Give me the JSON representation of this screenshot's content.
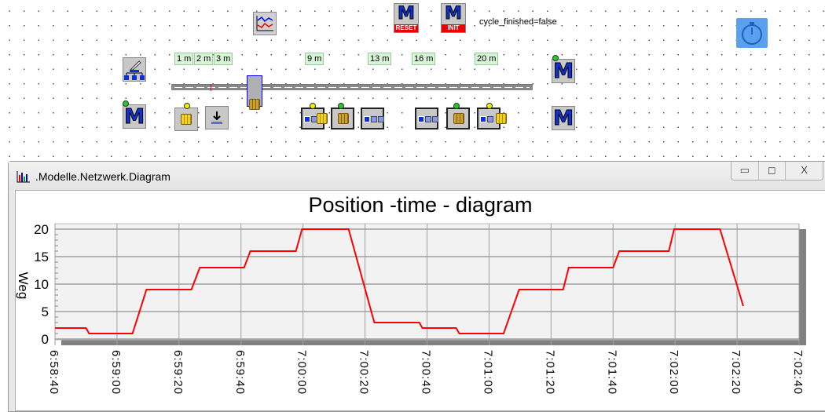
{
  "network": {
    "status_text": "cycle_finished=false",
    "reset_label": "RESET",
    "init_label": "INIT",
    "position_tags": [
      "1 m",
      "2 m",
      "3 m",
      "9 m",
      "13 m",
      "16 m",
      "20 m"
    ],
    "method_letter": "M"
  },
  "window": {
    "title": ".Modelle.Netzwerk.Diagram",
    "minimize": "▭",
    "maximize": "◻",
    "close": "X"
  },
  "chart_data": {
    "type": "line",
    "title": "Position -time - diagram",
    "xlabel": "",
    "ylabel": "Weg",
    "x_unit": "seconds since 6:58:40",
    "xlim": [
      0,
      240
    ],
    "ylim": [
      0,
      20
    ],
    "yticks": [
      0,
      5,
      10,
      15,
      20
    ],
    "xticks": [
      0,
      20,
      40,
      60,
      80,
      100,
      120,
      140,
      160,
      180,
      200,
      220,
      240
    ],
    "xtick_labels": [
      "6:58:40",
      "6:59:00",
      "6:59:20",
      "6:59:40",
      "7:00:00",
      "7:00:20",
      "7:00:40",
      "7:01:00",
      "7:01:20",
      "7:01:40",
      "7:02:00",
      "7:02:20",
      "7:02:40"
    ],
    "grid": true,
    "series": [
      {
        "name": "Weg",
        "color": "#ff0000",
        "x": [
          0,
          10,
          11,
          25,
          29.5,
          44,
          46.7,
          61,
          63,
          77.7,
          79.7,
          94.7,
          103,
          117.5,
          118.5,
          129.4,
          130.4,
          144.7,
          149.7,
          163.9,
          165.7,
          180,
          182,
          198,
          199.7,
          214.5,
          222
        ],
        "y": [
          2,
          2,
          1,
          1,
          9,
          9,
          13,
          13,
          16,
          16,
          20,
          20,
          3,
          3,
          2,
          2,
          1,
          1,
          9,
          9,
          13,
          13,
          16,
          16,
          20,
          20,
          6
        ]
      }
    ]
  }
}
